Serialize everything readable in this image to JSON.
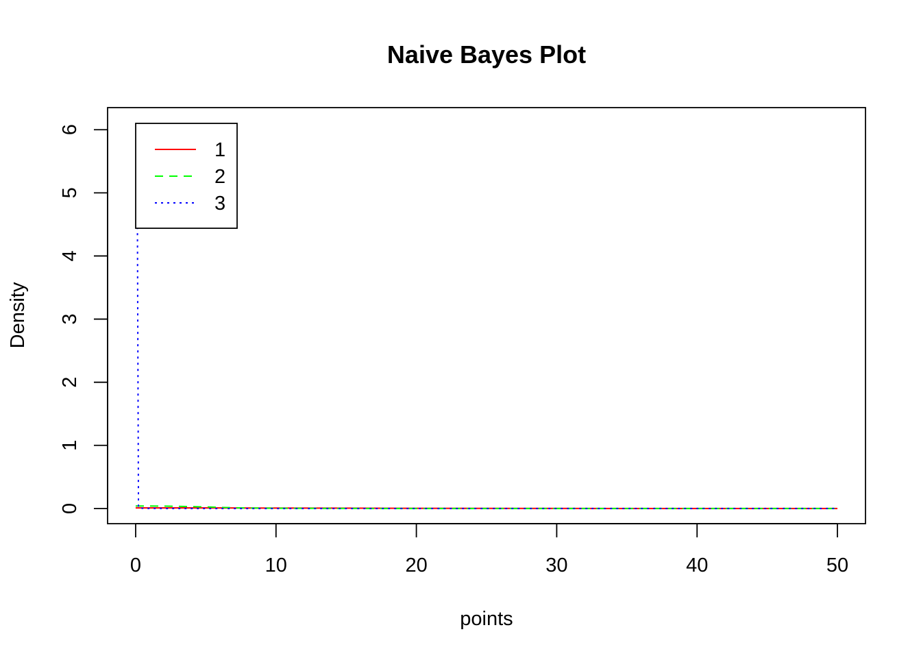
{
  "chart_data": {
    "type": "line",
    "title": "Naive Bayes Plot",
    "xlabel": "points",
    "ylabel": "Density",
    "xlim": [
      -2,
      52
    ],
    "ylim": [
      -0.24,
      6.35
    ],
    "x_ticks": [
      0,
      10,
      20,
      30,
      40,
      50
    ],
    "x_tick_labels": [
      "0",
      "10",
      "20",
      "30",
      "40",
      "50"
    ],
    "y_ticks": [
      0,
      1,
      2,
      3,
      4,
      5,
      6
    ],
    "y_tick_labels": [
      "0",
      "1",
      "2",
      "3",
      "4",
      "5",
      "6"
    ],
    "grid": false,
    "legend_position": "top-left",
    "series": [
      {
        "name": "1",
        "color": "#ff0000",
        "dash": "solid",
        "x": [
          0,
          2,
          5,
          10,
          15,
          20,
          30,
          40,
          50
        ],
        "y": [
          0.01,
          0.01,
          0.009,
          0.007,
          0.005,
          0.003,
          0.001,
          0.0005,
          0.0002
        ]
      },
      {
        "name": "2",
        "color": "#00ff00",
        "dash": "dashed",
        "x": [
          0,
          1,
          2,
          3,
          4,
          5,
          6,
          7,
          8,
          10,
          15,
          20,
          30,
          40,
          50
        ],
        "y": [
          0.04,
          0.04,
          0.038,
          0.035,
          0.03,
          0.025,
          0.018,
          0.012,
          0.008,
          0.004,
          0.001,
          0.0005,
          0.0002,
          0.0001,
          0.0
        ]
      },
      {
        "name": "3",
        "color": "#0000ff",
        "dash": "dotted",
        "x": [
          0.0,
          0.1,
          0.2,
          0.5,
          1,
          5,
          10,
          20,
          30,
          40,
          50
        ],
        "y": [
          6.0,
          6.0,
          0.01,
          0.003,
          0.001,
          0.0005,
          0.0002,
          0.0001,
          0.0,
          0.0,
          0.0
        ]
      }
    ]
  }
}
